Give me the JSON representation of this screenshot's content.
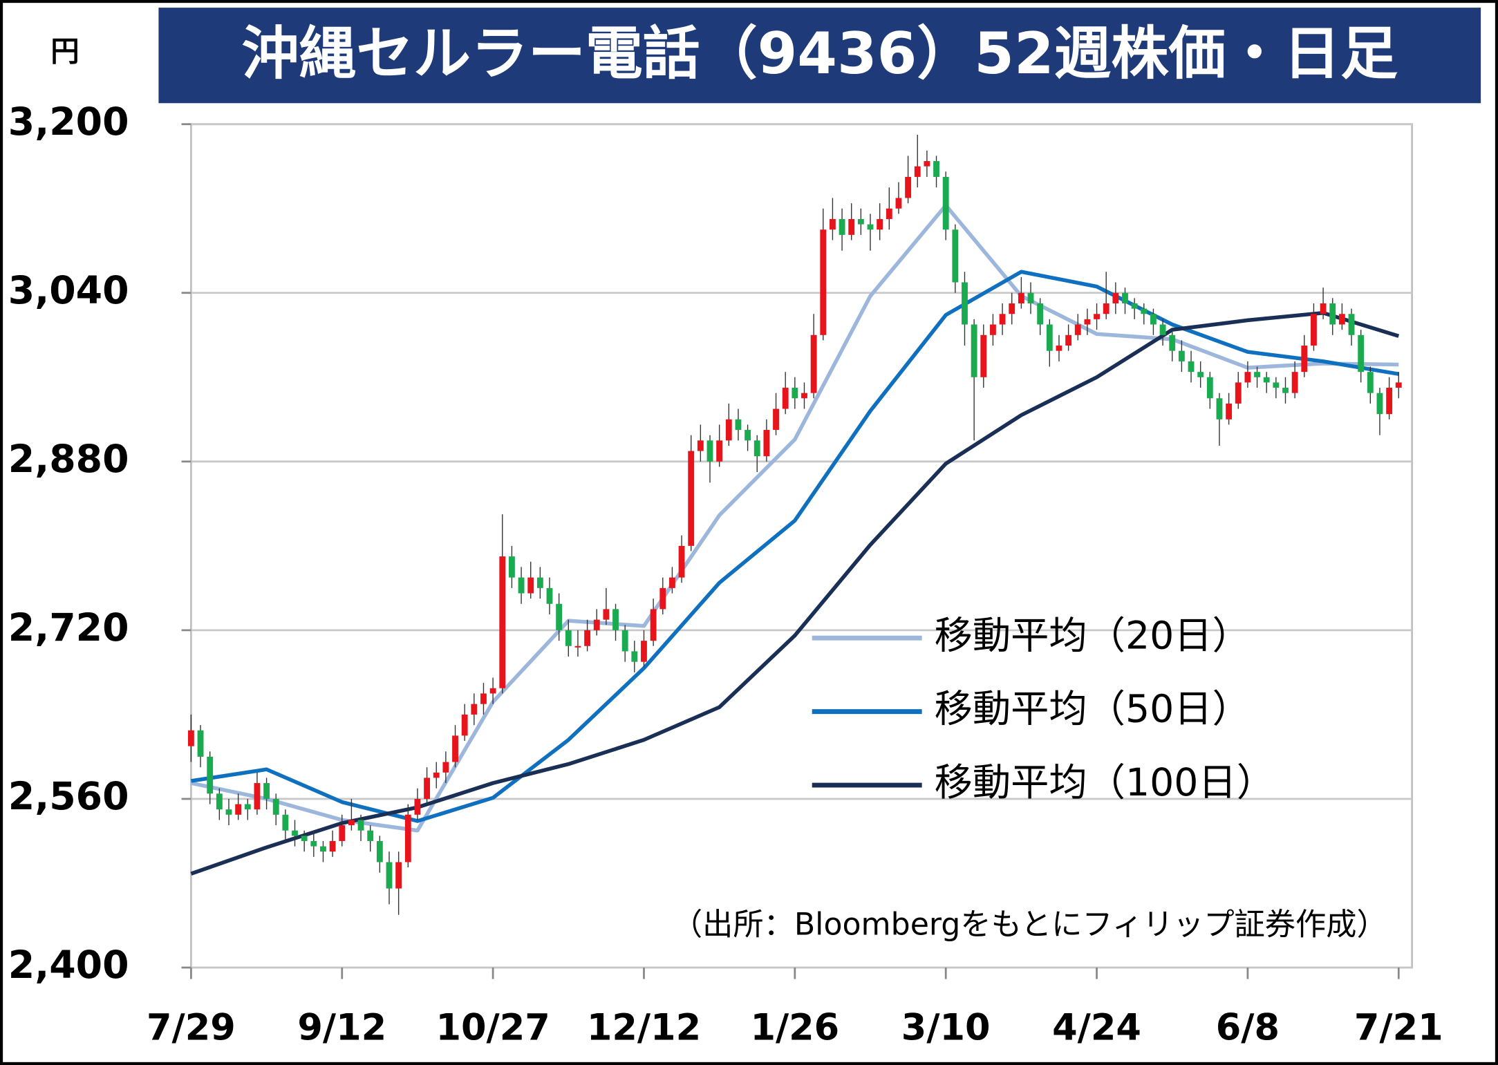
{
  "chart_data": {
    "type": "candlestick",
    "title": "沖縄セルラー電話（9436）52週株価・日足",
    "ylabel": "円",
    "note": "（出所：Bloombergをもとにフィリップ証券作成）",
    "up_color": "#e8141c",
    "down_color": "#1aaa50",
    "grid": true,
    "legend": "right",
    "xlim": [
      0,
      128
    ],
    "xticks": [
      {
        "value": 0,
        "label": "7/29"
      },
      {
        "value": 16,
        "label": "9/12"
      },
      {
        "value": 32,
        "label": "10/27"
      },
      {
        "value": 48,
        "label": "12/12"
      },
      {
        "value": 64,
        "label": "1/26"
      },
      {
        "value": 80,
        "label": "3/10"
      },
      {
        "value": 96,
        "label": "4/24"
      },
      {
        "value": 112,
        "label": "6/8"
      },
      {
        "value": 128,
        "label": "7/21"
      }
    ],
    "ylim": [
      2400,
      3200
    ],
    "yticks": [
      {
        "value": 2400,
        "label": "2,400"
      },
      {
        "value": 2560,
        "label": "2,560"
      },
      {
        "value": 2720,
        "label": "2,720"
      },
      {
        "value": 2880,
        "label": "2,880"
      },
      {
        "value": 3040,
        "label": "3,040"
      },
      {
        "value": 3200,
        "label": "3,200"
      }
    ],
    "candles": [
      [
        2610,
        2640,
        2595,
        2625
      ],
      [
        2625,
        2630,
        2590,
        2600
      ],
      [
        2600,
        2605,
        2555,
        2565
      ],
      [
        2565,
        2570,
        2540,
        2550
      ],
      [
        2550,
        2560,
        2535,
        2545
      ],
      [
        2545,
        2565,
        2540,
        2555
      ],
      [
        2555,
        2560,
        2540,
        2550
      ],
      [
        2550,
        2585,
        2545,
        2575
      ],
      [
        2575,
        2580,
        2550,
        2560
      ],
      [
        2560,
        2565,
        2535,
        2545
      ],
      [
        2545,
        2550,
        2520,
        2530
      ],
      [
        2530,
        2540,
        2515,
        2525
      ],
      [
        2525,
        2530,
        2510,
        2520
      ],
      [
        2520,
        2530,
        2505,
        2515
      ],
      [
        2515,
        2520,
        2500,
        2510
      ],
      [
        2510,
        2530,
        2505,
        2520
      ],
      [
        2520,
        2545,
        2515,
        2535
      ],
      [
        2535,
        2560,
        2530,
        2540
      ],
      [
        2540,
        2545,
        2520,
        2530
      ],
      [
        2530,
        2535,
        2510,
        2520
      ],
      [
        2520,
        2525,
        2490,
        2500
      ],
      [
        2500,
        2510,
        2460,
        2475
      ],
      [
        2475,
        2510,
        2450,
        2500
      ],
      [
        2500,
        2555,
        2495,
        2545
      ],
      [
        2545,
        2570,
        2540,
        2560
      ],
      [
        2560,
        2590,
        2555,
        2580
      ],
      [
        2580,
        2595,
        2570,
        2585
      ],
      [
        2585,
        2605,
        2575,
        2595
      ],
      [
        2595,
        2630,
        2590,
        2620
      ],
      [
        2620,
        2650,
        2615,
        2640
      ],
      [
        2640,
        2660,
        2630,
        2650
      ],
      [
        2650,
        2670,
        2640,
        2660
      ],
      [
        2660,
        2675,
        2650,
        2665
      ],
      [
        2665,
        2830,
        2660,
        2790
      ],
      [
        2790,
        2800,
        2760,
        2770
      ],
      [
        2770,
        2780,
        2745,
        2755
      ],
      [
        2755,
        2785,
        2750,
        2770
      ],
      [
        2770,
        2780,
        2750,
        2760
      ],
      [
        2760,
        2770,
        2735,
        2745
      ],
      [
        2745,
        2755,
        2710,
        2720
      ],
      [
        2720,
        2730,
        2695,
        2705
      ],
      [
        2705,
        2720,
        2695,
        2705
      ],
      [
        2705,
        2730,
        2700,
        2720
      ],
      [
        2720,
        2740,
        2715,
        2730
      ],
      [
        2730,
        2760,
        2725,
        2740
      ],
      [
        2740,
        2745,
        2710,
        2720
      ],
      [
        2720,
        2725,
        2690,
        2700
      ],
      [
        2700,
        2710,
        2680,
        2690
      ],
      [
        2690,
        2720,
        2685,
        2710
      ],
      [
        2710,
        2750,
        2705,
        2740
      ],
      [
        2740,
        2770,
        2735,
        2760
      ],
      [
        2760,
        2780,
        2755,
        2770
      ],
      [
        2770,
        2810,
        2765,
        2800
      ],
      [
        2800,
        2905,
        2795,
        2890
      ],
      [
        2890,
        2915,
        2880,
        2900
      ],
      [
        2900,
        2905,
        2860,
        2880
      ],
      [
        2880,
        2915,
        2875,
        2900
      ],
      [
        2900,
        2935,
        2895,
        2920
      ],
      [
        2920,
        2930,
        2900,
        2910
      ],
      [
        2910,
        2915,
        2890,
        2900
      ],
      [
        2900,
        2905,
        2870,
        2885
      ],
      [
        2885,
        2920,
        2880,
        2910
      ],
      [
        2910,
        2945,
        2905,
        2930
      ],
      [
        2930,
        2965,
        2925,
        2950
      ],
      [
        2950,
        2960,
        2930,
        2940
      ],
      [
        2940,
        2955,
        2930,
        2945
      ],
      [
        2945,
        3020,
        2940,
        3000
      ],
      [
        3000,
        3120,
        2995,
        3100
      ],
      [
        3100,
        3130,
        3090,
        3110
      ],
      [
        3110,
        3120,
        3080,
        3095
      ],
      [
        3095,
        3125,
        3090,
        3110
      ],
      [
        3110,
        3120,
        3095,
        3105
      ],
      [
        3105,
        3115,
        3080,
        3100
      ],
      [
        3100,
        3125,
        3090,
        3110
      ],
      [
        3110,
        3140,
        3100,
        3120
      ],
      [
        3120,
        3145,
        3115,
        3130
      ],
      [
        3130,
        3170,
        3125,
        3150
      ],
      [
        3150,
        3190,
        3140,
        3160
      ],
      [
        3160,
        3175,
        3150,
        3165
      ],
      [
        3165,
        3170,
        3140,
        3150
      ],
      [
        3150,
        3155,
        3090,
        3100
      ],
      [
        3100,
        3105,
        3040,
        3050
      ],
      [
        3050,
        3060,
        2990,
        3010
      ],
      [
        3010,
        3015,
        2900,
        2960
      ],
      [
        2960,
        3010,
        2950,
        3000
      ],
      [
        3000,
        3020,
        2990,
        3010
      ],
      [
        3010,
        3030,
        3000,
        3020
      ],
      [
        3020,
        3040,
        3010,
        3030
      ],
      [
        3030,
        3055,
        3025,
        3040
      ],
      [
        3040,
        3050,
        3020,
        3030
      ],
      [
        3030,
        3035,
        3000,
        3010
      ],
      [
        3010,
        3015,
        2970,
        2985
      ],
      [
        2985,
        3000,
        2975,
        2990
      ],
      [
        2990,
        3010,
        2985,
        3000
      ],
      [
        3000,
        3020,
        2995,
        3010
      ],
      [
        3010,
        3025,
        3000,
        3015
      ],
      [
        3015,
        3030,
        3005,
        3020
      ],
      [
        3020,
        3060,
        3015,
        3030
      ],
      [
        3030,
        3050,
        3020,
        3040
      ],
      [
        3040,
        3045,
        3020,
        3030
      ],
      [
        3030,
        3035,
        3015,
        3025
      ],
      [
        3025,
        3030,
        3010,
        3020
      ],
      [
        3020,
        3025,
        3000,
        3010
      ],
      [
        3010,
        3015,
        2990,
        3000
      ],
      [
        3000,
        3005,
        2975,
        2985
      ],
      [
        2985,
        2995,
        2965,
        2975
      ],
      [
        2975,
        2985,
        2955,
        2965
      ],
      [
        2965,
        2975,
        2950,
        2960
      ],
      [
        2960,
        2965,
        2930,
        2940
      ],
      [
        2940,
        2945,
        2895,
        2920
      ],
      [
        2920,
        2945,
        2915,
        2935
      ],
      [
        2935,
        2965,
        2930,
        2955
      ],
      [
        2955,
        2975,
        2950,
        2965
      ],
      [
        2965,
        2970,
        2950,
        2960
      ],
      [
        2960,
        2965,
        2945,
        2955
      ],
      [
        2955,
        2960,
        2940,
        2950
      ],
      [
        2950,
        2960,
        2935,
        2945
      ],
      [
        2945,
        2975,
        2940,
        2965
      ],
      [
        2965,
        3000,
        2960,
        2990
      ],
      [
        2990,
        3030,
        2985,
        3020
      ],
      [
        3020,
        3045,
        3015,
        3030
      ],
      [
        3030,
        3035,
        3000,
        3010
      ],
      [
        3010,
        3030,
        3005,
        3020
      ],
      [
        3020,
        3025,
        2990,
        3000
      ],
      [
        3000,
        3005,
        2955,
        2965
      ],
      [
        2965,
        2970,
        2935,
        2945
      ],
      [
        2945,
        2950,
        2905,
        2925
      ],
      [
        2925,
        2960,
        2920,
        2950
      ],
      [
        2950,
        2965,
        2940,
        2955
      ]
    ],
    "series": [
      {
        "name": "移動平均（20日）",
        "color": "#9db7dc",
        "x": [
          0,
          8,
          16,
          24,
          32,
          40,
          48,
          56,
          64,
          72,
          80,
          88,
          96,
          104,
          112,
          120,
          128
        ],
        "values": [
          2575,
          2560,
          2540,
          2530,
          2652,
          2729,
          2724,
          2829,
          2901,
          3037,
          3123,
          3037,
          3001,
          2996,
          2969,
          2973,
          2972
        ]
      },
      {
        "name": "移動平均（50日）",
        "color": "#1070c0",
        "x": [
          0,
          8,
          16,
          24,
          32,
          40,
          48,
          56,
          64,
          72,
          80,
          88,
          96,
          104,
          112,
          120,
          128
        ],
        "values": [
          2577,
          2588,
          2557,
          2539,
          2561,
          2616,
          2684,
          2765,
          2824,
          2928,
          3019,
          3060,
          3046,
          3010,
          2984,
          2975,
          2963
        ]
      },
      {
        "name": "移動平均（100日）",
        "color": "#1a2f55",
        "x": [
          0,
          8,
          16,
          24,
          32,
          40,
          48,
          56,
          64,
          72,
          80,
          88,
          96,
          104,
          112,
          120,
          128
        ],
        "values": [
          2489,
          2514,
          2537,
          2552,
          2575,
          2593,
          2616,
          2647,
          2715,
          2801,
          2878,
          2924,
          2960,
          3005,
          3014,
          3021,
          2999
        ]
      }
    ]
  }
}
